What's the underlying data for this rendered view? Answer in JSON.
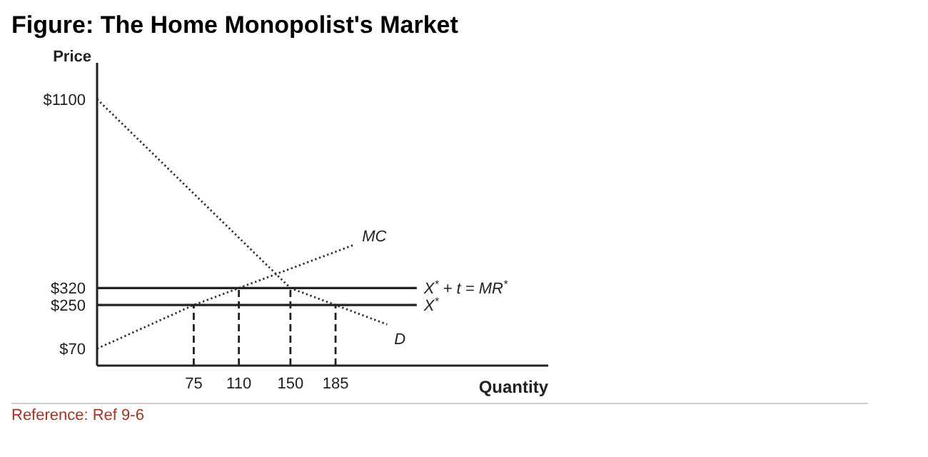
{
  "chart_data": {
    "type": "line",
    "title": "Figure: The Home Monopolist's Market",
    "xlabel": "Quantity",
    "ylabel": "Price",
    "annotations": [
      "Reference: Ref 9-6"
    ],
    "legend": false,
    "grid": false,
    "marker": "none",
    "xlim": [
      0,
      350
    ],
    "xticks": [
      75,
      110,
      150,
      185
    ],
    "ylim": [
      0,
      1250
    ],
    "yticks": [
      {
        "value": 70,
        "label": "$70"
      },
      {
        "value": 250,
        "label": "$250"
      },
      {
        "value": 320,
        "label": "$320"
      },
      {
        "value": 1100,
        "label": "$1100"
      }
    ],
    "series": [
      {
        "name": "D",
        "color": "#333333",
        "line_style": "dotted",
        "x": [
          0,
          150,
          185,
          225
        ],
        "values": [
          1100,
          320,
          250,
          170
        ]
      },
      {
        "name": "MC",
        "color": "#333333",
        "line_style": "dotted",
        "x": [
          0,
          75,
          110,
          200
        ],
        "values": [
          70,
          250,
          320,
          500
        ]
      },
      {
        "name": "X$^{*}$ + t = MR$^{*}$",
        "color": "#222222",
        "line_style": "solid",
        "x": [
          0,
          248
        ],
        "values": [
          320,
          320
        ]
      },
      {
        "name": "X$^{*}$",
        "color": "#222222",
        "line_style": "solid",
        "x": [
          0,
          248
        ],
        "values": [
          250,
          250
        ]
      },
      {
        "color": "#222222",
        "line_style": "dashed",
        "x": [
          75,
          75
        ],
        "values": [
          0,
          250
        ]
      },
      {
        "color": "#222222",
        "line_style": "dashed",
        "x": [
          110,
          110
        ],
        "values": [
          0,
          320
        ]
      },
      {
        "color": "#222222",
        "line_style": "dashed",
        "x": [
          150,
          150
        ],
        "values": [
          0,
          320
        ]
      },
      {
        "color": "#222222",
        "line_style": "dashed",
        "x": [
          185,
          185
        ],
        "values": [
          0,
          250
        ]
      }
    ]
  }
}
